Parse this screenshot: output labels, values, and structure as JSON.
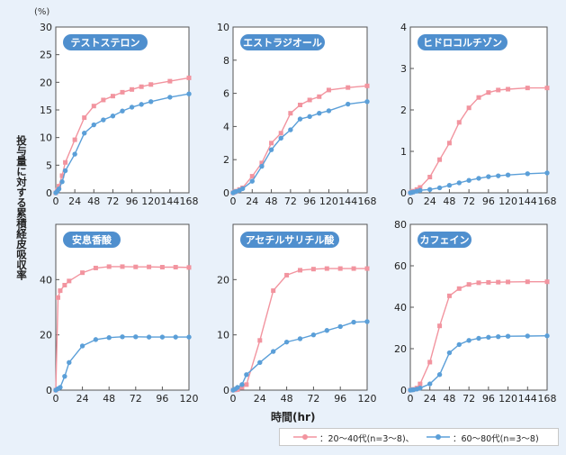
{
  "figure": {
    "ylabel": "投与量に対する累積経皮吸収率",
    "unit": "(%)",
    "xlabel": "時間(hr)",
    "legend": [
      {
        "label": "：20〜40代(n=3〜8)、",
        "color": "#f2949f"
      },
      {
        "label": "：60〜80代(n=3〜8)",
        "color": "#5b9fd8"
      }
    ]
  },
  "chart_data": [
    {
      "type": "line",
      "title": "テストステロン",
      "x": [
        0,
        2,
        4,
        8,
        12,
        24,
        36,
        48,
        60,
        72,
        84,
        96,
        108,
        120,
        144,
        168
      ],
      "xticks": [
        0,
        24,
        48,
        72,
        96,
        120,
        144,
        168
      ],
      "xlim": [
        0,
        168
      ],
      "yticks": [
        0,
        5,
        10,
        15,
        20,
        25,
        30
      ],
      "ylim": [
        0,
        30
      ],
      "series": [
        {
          "color": "#f2949f",
          "values": [
            0,
            0.5,
            1.2,
            3.1,
            5.5,
            9.6,
            13.6,
            15.7,
            16.8,
            17.5,
            18.2,
            18.7,
            19.2,
            19.6,
            20.2,
            20.8
          ]
        },
        {
          "color": "#5b9fd8",
          "values": [
            0,
            0.3,
            0.7,
            2.0,
            4.0,
            7.0,
            10.8,
            12.3,
            13.2,
            13.9,
            14.8,
            15.5,
            16.0,
            16.5,
            17.3,
            17.9
          ]
        }
      ]
    },
    {
      "type": "line",
      "title": "エストラジオール",
      "x": [
        0,
        2,
        4,
        8,
        12,
        24,
        36,
        48,
        60,
        72,
        84,
        96,
        108,
        120,
        144,
        168
      ],
      "xticks": [
        0,
        24,
        48,
        72,
        96,
        120,
        144,
        168
      ],
      "xlim": [
        0,
        168
      ],
      "yticks": [
        0,
        2,
        4,
        6,
        8,
        10
      ],
      "ylim": [
        0,
        10
      ],
      "series": [
        {
          "color": "#f2949f",
          "values": [
            0,
            0.05,
            0.1,
            0.2,
            0.3,
            1.0,
            1.8,
            3.0,
            3.6,
            4.8,
            5.3,
            5.6,
            5.8,
            6.2,
            6.35,
            6.45
          ]
        },
        {
          "color": "#5b9fd8",
          "values": [
            0,
            0.05,
            0.08,
            0.15,
            0.25,
            0.7,
            1.6,
            2.6,
            3.3,
            3.8,
            4.45,
            4.6,
            4.8,
            4.95,
            5.35,
            5.5
          ]
        }
      ]
    },
    {
      "type": "line",
      "title": "ヒドロコルチゾン",
      "x": [
        0,
        2,
        4,
        8,
        12,
        24,
        36,
        48,
        60,
        72,
        84,
        96,
        108,
        120,
        144,
        168
      ],
      "xticks": [
        0,
        24,
        48,
        72,
        96,
        120,
        144,
        168
      ],
      "xlim": [
        0,
        168
      ],
      "yticks": [
        0,
        1,
        2,
        3,
        4
      ],
      "ylim": [
        0,
        4
      ],
      "series": [
        {
          "color": "#f2949f",
          "values": [
            0,
            0.02,
            0.04,
            0.08,
            0.13,
            0.38,
            0.8,
            1.2,
            1.7,
            2.05,
            2.3,
            2.42,
            2.48,
            2.5,
            2.53,
            2.53
          ]
        },
        {
          "color": "#5b9fd8",
          "values": [
            0,
            0.01,
            0.02,
            0.04,
            0.06,
            0.08,
            0.12,
            0.18,
            0.24,
            0.3,
            0.35,
            0.39,
            0.41,
            0.43,
            0.46,
            0.48
          ]
        }
      ]
    },
    {
      "type": "line",
      "title": "安息香酸",
      "x": [
        0,
        2,
        4,
        8,
        12,
        24,
        36,
        48,
        60,
        72,
        84,
        96,
        108,
        120
      ],
      "xticks": [
        0,
        24,
        48,
        72,
        96,
        120
      ],
      "xlim": [
        0,
        120
      ],
      "yticks": [
        0,
        20,
        40
      ],
      "ylim": [
        0,
        60
      ],
      "series": [
        {
          "color": "#f2949f",
          "values": [
            0,
            33.5,
            36.0,
            38.0,
            39.5,
            42.5,
            44.2,
            44.7,
            44.7,
            44.6,
            44.6,
            44.5,
            44.5,
            44.4
          ]
        },
        {
          "color": "#5b9fd8",
          "values": [
            0,
            0.5,
            1.0,
            5.0,
            10.0,
            16.0,
            18.3,
            19.0,
            19.3,
            19.3,
            19.2,
            19.2,
            19.2,
            19.2
          ]
        }
      ]
    },
    {
      "type": "line",
      "title": "アセチルサリチル酸",
      "x": [
        0,
        2,
        4,
        8,
        12,
        24,
        36,
        48,
        60,
        72,
        84,
        96,
        108,
        120
      ],
      "xticks": [
        0,
        24,
        48,
        72,
        96,
        120
      ],
      "xlim": [
        0,
        120
      ],
      "yticks": [
        0,
        10,
        20
      ],
      "ylim": [
        0,
        30
      ],
      "series": [
        {
          "color": "#f2949f",
          "values": [
            0,
            0.05,
            0.1,
            0.5,
            1.0,
            9.0,
            18.0,
            20.8,
            21.7,
            21.9,
            22.0,
            22.0,
            22.0,
            22.0
          ]
        },
        {
          "color": "#5b9fd8",
          "values": [
            0,
            0.2,
            0.5,
            1.0,
            2.8,
            5.0,
            7.0,
            8.7,
            9.3,
            10.0,
            10.8,
            11.5,
            12.3,
            12.4
          ]
        }
      ]
    },
    {
      "type": "line",
      "title": "カフェイン",
      "x": [
        0,
        2,
        4,
        8,
        12,
        24,
        36,
        48,
        60,
        72,
        84,
        96,
        108,
        120,
        144,
        168
      ],
      "xticks": [
        0,
        24,
        48,
        72,
        96,
        120,
        144,
        168
      ],
      "xlim": [
        0,
        168
      ],
      "yticks": [
        0,
        20,
        40,
        60,
        80
      ],
      "ylim": [
        0,
        80
      ],
      "series": [
        {
          "color": "#f2949f",
          "values": [
            0,
            0.2,
            0.4,
            1.0,
            3.0,
            13.5,
            31.0,
            45.5,
            49.0,
            51.0,
            51.8,
            52.0,
            52.1,
            52.2,
            52.3,
            52.3
          ]
        },
        {
          "color": "#5b9fd8",
          "values": [
            0,
            0.1,
            0.2,
            0.5,
            1.0,
            3.0,
            7.5,
            18.0,
            22.0,
            24.0,
            25.0,
            25.5,
            25.8,
            26.0,
            26.1,
            26.2
          ]
        }
      ]
    }
  ]
}
